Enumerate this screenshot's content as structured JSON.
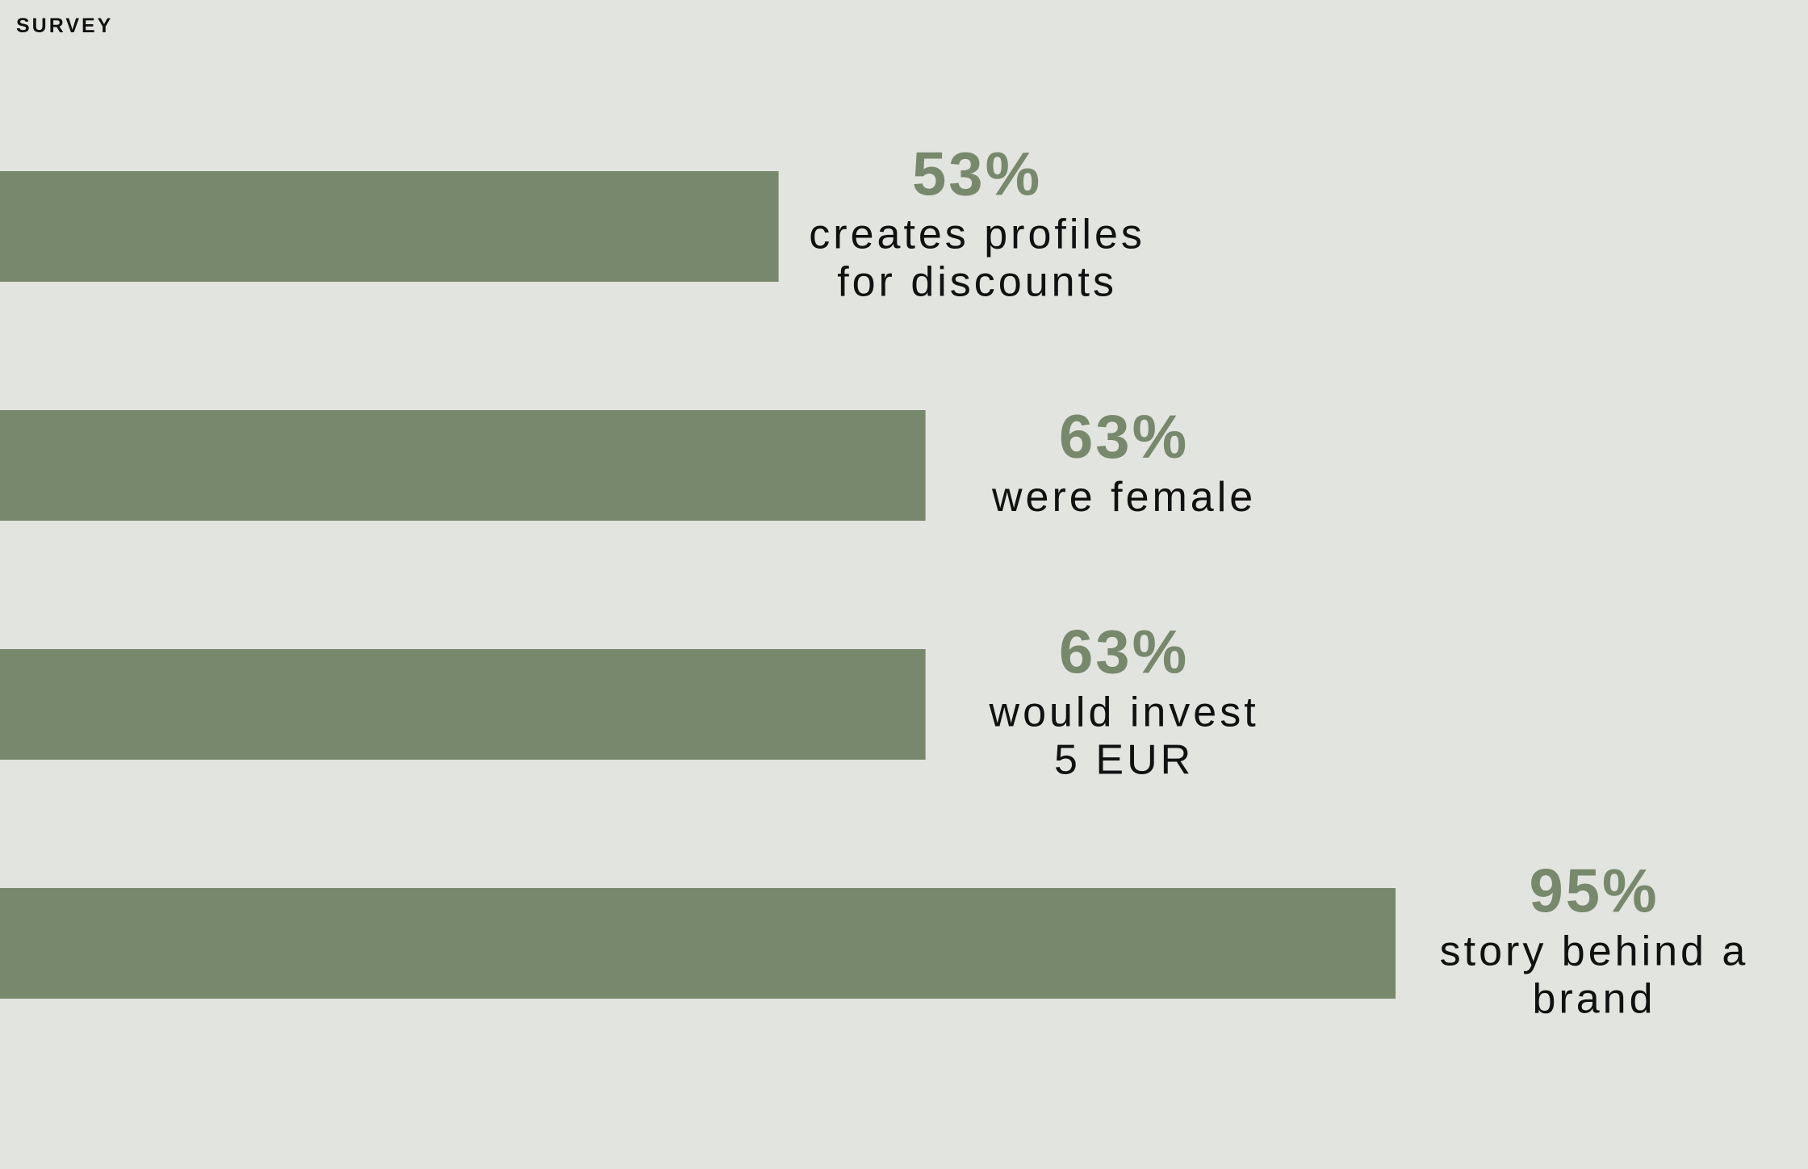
{
  "header": {
    "kicker": "SURVEY"
  },
  "theme": {
    "background": "#e2e4df",
    "bar_color": "#78886c",
    "value_color": "#78886c",
    "text_color": "#111111"
  },
  "chart_data": {
    "type": "bar",
    "orientation": "horizontal",
    "title": "",
    "xlabel": "",
    "ylabel": "",
    "xlim": [
      0,
      100
    ],
    "grid": false,
    "legend": "none",
    "value_labels": [
      "53%",
      "63%",
      "63%",
      "95%"
    ],
    "categories": [
      [
        "creates profiles",
        "for discounts"
      ],
      [
        "were female"
      ],
      [
        "would invest",
        "5 EUR"
      ],
      [
        "story behind a",
        "brand"
      ]
    ],
    "values": [
      53,
      63,
      63,
      95
    ]
  }
}
